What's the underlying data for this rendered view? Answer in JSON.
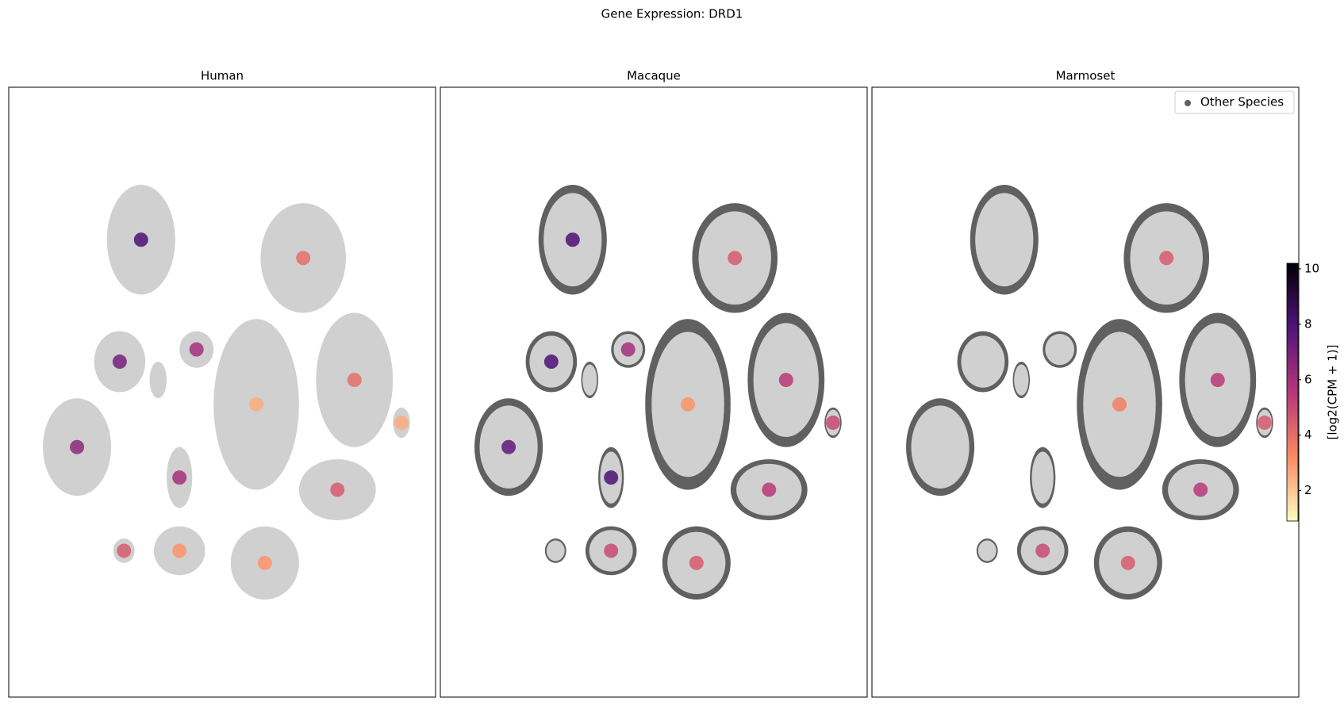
{
  "title": "Gene Expression: DRD1",
  "colorbar": {
    "label": "[log2(CPM + 1)]",
    "lim": [
      0.9,
      10.2
    ],
    "ticks": [
      2,
      4,
      6,
      8,
      10
    ],
    "cmap": "magma_r"
  },
  "chart_data": [
    {
      "type": "scatter",
      "title": "Human",
      "xlim": [
        0,
        100
      ],
      "ylim": [
        0,
        100
      ],
      "x": [
        31,
        69,
        81,
        77,
        26,
        16,
        58,
        40,
        60,
        40,
        27,
        92,
        44
      ],
      "y": [
        75,
        72,
        52,
        34,
        55,
        41,
        48,
        36,
        22,
        24,
        24,
        45,
        57
      ],
      "values": [
        8,
        4,
        4,
        4.5,
        7,
        6.5,
        2.5,
        6,
        3,
        3,
        4.5,
        2.5,
        6
      ]
    },
    {
      "type": "scatter",
      "title": "Macaque",
      "xlim": [
        0,
        100
      ],
      "ylim": [
        0,
        100
      ],
      "x": [
        31,
        69,
        81,
        77,
        26,
        16,
        58,
        40,
        60,
        40,
        92,
        44
      ],
      "y": [
        75,
        72,
        52,
        34,
        55,
        41,
        48,
        36,
        22,
        24,
        45,
        57
      ],
      "values": [
        8,
        4.5,
        5.5,
        5.5,
        8,
        7.5,
        3,
        8,
        4.5,
        5,
        5,
        6
      ]
    },
    {
      "type": "scatter",
      "title": "Marmoset",
      "xlim": [
        0,
        100
      ],
      "ylim": [
        0,
        100
      ],
      "x": [
        69,
        81,
        77,
        58,
        60,
        40,
        92
      ],
      "y": [
        72,
        52,
        34,
        48,
        22,
        24,
        45
      ],
      "values": [
        4.5,
        5.5,
        5.5,
        3.5,
        4.5,
        5,
        4.5
      ],
      "legend": {
        "label": "Other Species",
        "color": "#606060",
        "corner": "upper right"
      }
    }
  ]
}
